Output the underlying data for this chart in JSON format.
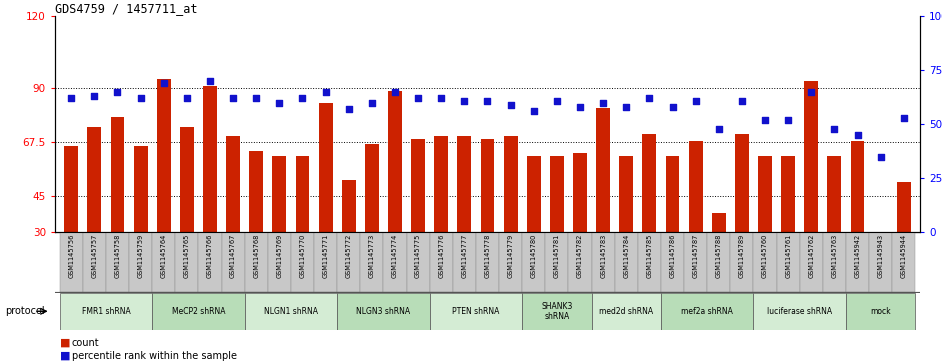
{
  "title": "GDS4759 / 1457711_at",
  "samples": [
    "GSM1145756",
    "GSM1145757",
    "GSM1145758",
    "GSM1145759",
    "GSM1145764",
    "GSM1145765",
    "GSM1145766",
    "GSM1145767",
    "GSM1145768",
    "GSM1145769",
    "GSM1145770",
    "GSM1145771",
    "GSM1145772",
    "GSM1145773",
    "GSM1145774",
    "GSM1145775",
    "GSM1145776",
    "GSM1145777",
    "GSM1145778",
    "GSM1145779",
    "GSM1145780",
    "GSM1145781",
    "GSM1145782",
    "GSM1145783",
    "GSM1145784",
    "GSM1145785",
    "GSM1145786",
    "GSM1145787",
    "GSM1145788",
    "GSM1145789",
    "GSM1145760",
    "GSM1145761",
    "GSM1145762",
    "GSM1145763",
    "GSM1145942",
    "GSM1145943",
    "GSM1145944"
  ],
  "counts": [
    66,
    74,
    78,
    66,
    94,
    74,
    91,
    70,
    64,
    62,
    62,
    84,
    52,
    67,
    89,
    69,
    70,
    70,
    69,
    70,
    62,
    62,
    63,
    82,
    62,
    71,
    62,
    68,
    38,
    71,
    62,
    62,
    93,
    62,
    68,
    27,
    51
  ],
  "percentiles": [
    62,
    63,
    65,
    62,
    69,
    62,
    70,
    62,
    62,
    60,
    62,
    65,
    57,
    60,
    65,
    62,
    62,
    61,
    61,
    59,
    56,
    61,
    58,
    60,
    58,
    62,
    58,
    61,
    48,
    61,
    52,
    52,
    65,
    48,
    45,
    35,
    53
  ],
  "protocols": [
    {
      "label": "FMR1 shRNA",
      "start": 0,
      "end": 4,
      "color": "#d4ecd4"
    },
    {
      "label": "MeCP2 shRNA",
      "start": 4,
      "end": 8,
      "color": "#b8ddb8"
    },
    {
      "label": "NLGN1 shRNA",
      "start": 8,
      "end": 12,
      "color": "#d4ecd4"
    },
    {
      "label": "NLGN3 shRNA",
      "start": 12,
      "end": 16,
      "color": "#b8ddb8"
    },
    {
      "label": "PTEN shRNA",
      "start": 16,
      "end": 20,
      "color": "#d4ecd4"
    },
    {
      "label": "SHANK3\nshRNA",
      "start": 20,
      "end": 23,
      "color": "#b8ddb8"
    },
    {
      "label": "med2d shRNA",
      "start": 23,
      "end": 26,
      "color": "#d4ecd4"
    },
    {
      "label": "mef2a shRNA",
      "start": 26,
      "end": 30,
      "color": "#b8ddb8"
    },
    {
      "label": "luciferase shRNA",
      "start": 30,
      "end": 34,
      "color": "#d4ecd4"
    },
    {
      "label": "mock",
      "start": 34,
      "end": 37,
      "color": "#b8ddb8"
    }
  ],
  "ylim_left": [
    30,
    120
  ],
  "ylim_right": [
    0,
    100
  ],
  "yticks_left": [
    30,
    45,
    67.5,
    90,
    120
  ],
  "yticks_right": [
    0,
    25,
    50,
    75,
    100
  ],
  "ytick_labels_left": [
    "30",
    "45",
    "67.5",
    "90",
    "120"
  ],
  "ytick_labels_right": [
    "0",
    "25",
    "50",
    "75",
    "100%"
  ],
  "bar_color": "#cc2200",
  "dot_color": "#1111cc",
  "bg_color": "#ffffff"
}
